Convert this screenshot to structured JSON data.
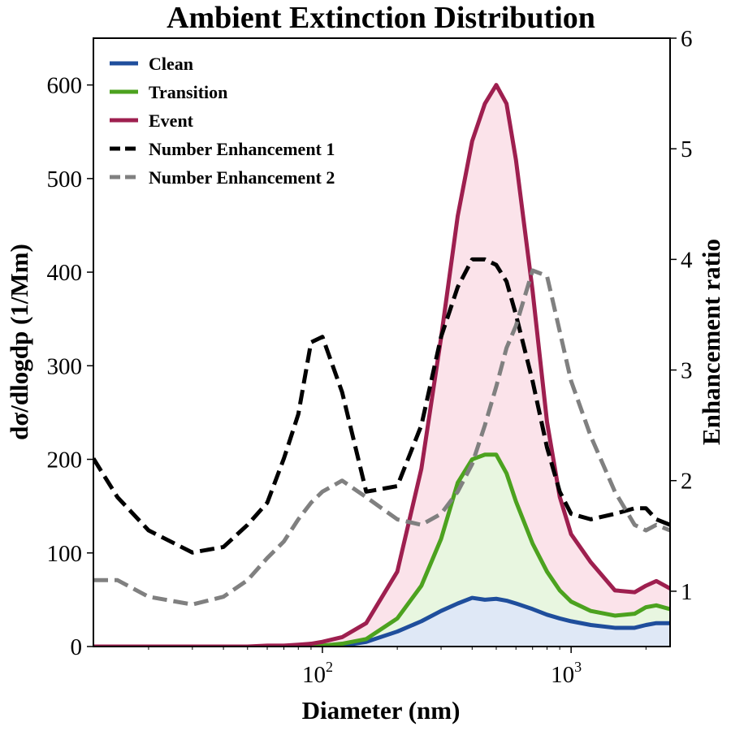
{
  "chart_data": {
    "type": "line",
    "title": "Ambient Extinction Distribution",
    "xlabel": "Diameter (nm)",
    "ylabel": "dσ/dlogdp (1/Mm)",
    "y2label": "Enhancement ratio",
    "x_scale": "log",
    "xlim": [
      12,
      2500
    ],
    "ylim": [
      0,
      650
    ],
    "y2lim": [
      0.5,
      6
    ],
    "x_ticks": [
      {
        "value": 100,
        "base": "10",
        "exp": "2"
      },
      {
        "value": 1000,
        "base": "10",
        "exp": "3"
      }
    ],
    "y_ticks": [
      0,
      100,
      200,
      300,
      400,
      500,
      600
    ],
    "y2_ticks": [
      1,
      2,
      3,
      4,
      5,
      6
    ],
    "grid": false,
    "legend_position": "top-left",
    "x": [
      12,
      15,
      20,
      30,
      40,
      50,
      60,
      70,
      80,
      90,
      100,
      120,
      150,
      200,
      250,
      300,
      350,
      400,
      450,
      500,
      550,
      600,
      700,
      800,
      900,
      1000,
      1200,
      1500,
      1800,
      2000,
      2200,
      2500
    ],
    "series": [
      {
        "name": "Clean",
        "axis": "left",
        "color": "#1f4e9c",
        "dash": "solid",
        "fill": "#dfe8f6",
        "values": [
          0,
          0,
          0,
          0,
          0,
          0,
          0,
          0,
          0,
          0,
          0,
          1,
          5,
          16,
          27,
          38,
          46,
          52,
          50,
          51,
          49,
          46,
          40,
          34,
          30,
          27,
          23,
          20,
          20,
          23,
          25,
          25
        ]
      },
      {
        "name": "Transition",
        "axis": "left",
        "color": "#4ca21f",
        "dash": "solid",
        "fill": "#e8f6e0",
        "values": [
          0,
          0,
          0,
          0,
          0,
          0,
          0,
          0,
          0,
          0,
          1,
          3,
          8,
          30,
          65,
          115,
          175,
          200,
          205,
          205,
          185,
          155,
          110,
          80,
          60,
          48,
          38,
          33,
          35,
          42,
          44,
          40
        ]
      },
      {
        "name": "Event",
        "axis": "left",
        "color": "#9e1f4f",
        "dash": "solid",
        "fill": "#fbe3ea",
        "values": [
          0,
          0,
          0,
          0,
          0,
          0,
          1,
          1,
          2,
          3,
          5,
          10,
          25,
          80,
          190,
          330,
          460,
          540,
          580,
          600,
          580,
          520,
          380,
          240,
          160,
          120,
          90,
          60,
          58,
          65,
          70,
          62
        ]
      },
      {
        "name": "Number Enhancement 1",
        "axis": "right",
        "color": "#000000",
        "dash": "dashed",
        "values": [
          2.2,
          1.85,
          1.55,
          1.35,
          1.4,
          1.6,
          1.8,
          2.2,
          2.6,
          3.25,
          3.3,
          2.8,
          1.9,
          1.95,
          2.5,
          3.3,
          3.75,
          4.0,
          4.0,
          3.95,
          3.8,
          3.5,
          2.9,
          2.3,
          1.9,
          1.7,
          1.65,
          1.7,
          1.75,
          1.75,
          1.65,
          1.6
        ]
      },
      {
        "name": "Number Enhancement 2",
        "axis": "right",
        "color": "#808080",
        "dash": "dashed",
        "values": [
          1.1,
          1.1,
          0.95,
          0.88,
          0.95,
          1.1,
          1.3,
          1.45,
          1.65,
          1.8,
          1.9,
          2.0,
          1.85,
          1.65,
          1.6,
          1.7,
          1.9,
          2.15,
          2.5,
          2.85,
          3.2,
          3.4,
          3.9,
          3.85,
          3.35,
          2.9,
          2.4,
          1.9,
          1.6,
          1.55,
          1.6,
          1.55
        ]
      }
    ]
  }
}
